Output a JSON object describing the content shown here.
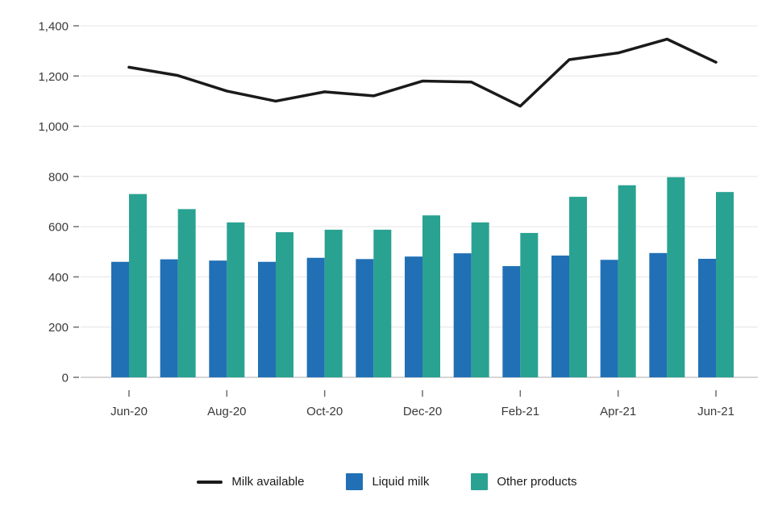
{
  "chart_data": {
    "type": "bar",
    "subtype": "grouped-bars-with-line-overlay",
    "categories": [
      "Jun-20",
      "Jul-20",
      "Aug-20",
      "Sep-20",
      "Oct-20",
      "Nov-20",
      "Dec-20",
      "Jan-21",
      "Feb-21",
      "Mar-21",
      "Apr-21",
      "May-21",
      "Jun-21"
    ],
    "x_tick_labels": [
      "Jun-20",
      "Aug-20",
      "Oct-20",
      "Dec-20",
      "Feb-21",
      "Apr-21",
      "Jun-21"
    ],
    "series": [
      {
        "name": "Milk available",
        "type": "line",
        "color": "#1a1a1a",
        "values": [
          1235,
          1202,
          1140,
          1100,
          1137,
          1121,
          1180,
          1176,
          1080,
          1265,
          1292,
          1347,
          1255
        ]
      },
      {
        "name": "Liquid milk",
        "type": "bar",
        "color": "#2170b5",
        "values": [
          460,
          470,
          465,
          460,
          476,
          471,
          481,
          494,
          443,
          485,
          468,
          495,
          472
        ]
      },
      {
        "name": "Other products",
        "type": "bar",
        "color": "#2aa292",
        "values": [
          730,
          670,
          617,
          578,
          588,
          588,
          645,
          617,
          575,
          719,
          765,
          797,
          738
        ]
      }
    ],
    "title": "",
    "xlabel": "",
    "ylabel": "",
    "ylim": [
      0,
      1400
    ],
    "y_ticks": [
      0,
      200,
      400,
      600,
      800,
      1000,
      1200,
      1400
    ],
    "y_tick_labels": [
      "0",
      "200",
      "400",
      "600",
      "800",
      "1,000",
      "1,200",
      "1,400"
    ],
    "grid": true,
    "legend_position": "bottom"
  },
  "legend": {
    "items": [
      {
        "label": "Milk available",
        "swatch": "line",
        "color": "#1a1a1a"
      },
      {
        "label": "Liquid milk",
        "swatch": "square",
        "color": "#2170b5"
      },
      {
        "label": "Other products",
        "swatch": "square",
        "color": "#2aa292"
      }
    ]
  },
  "colors": {
    "grid": "#e4e4e4",
    "zero_line": "#c9c9c9",
    "axis_tick": "#6e6e6e",
    "axis_text": "#3a3a3a",
    "background": "#ffffff"
  }
}
